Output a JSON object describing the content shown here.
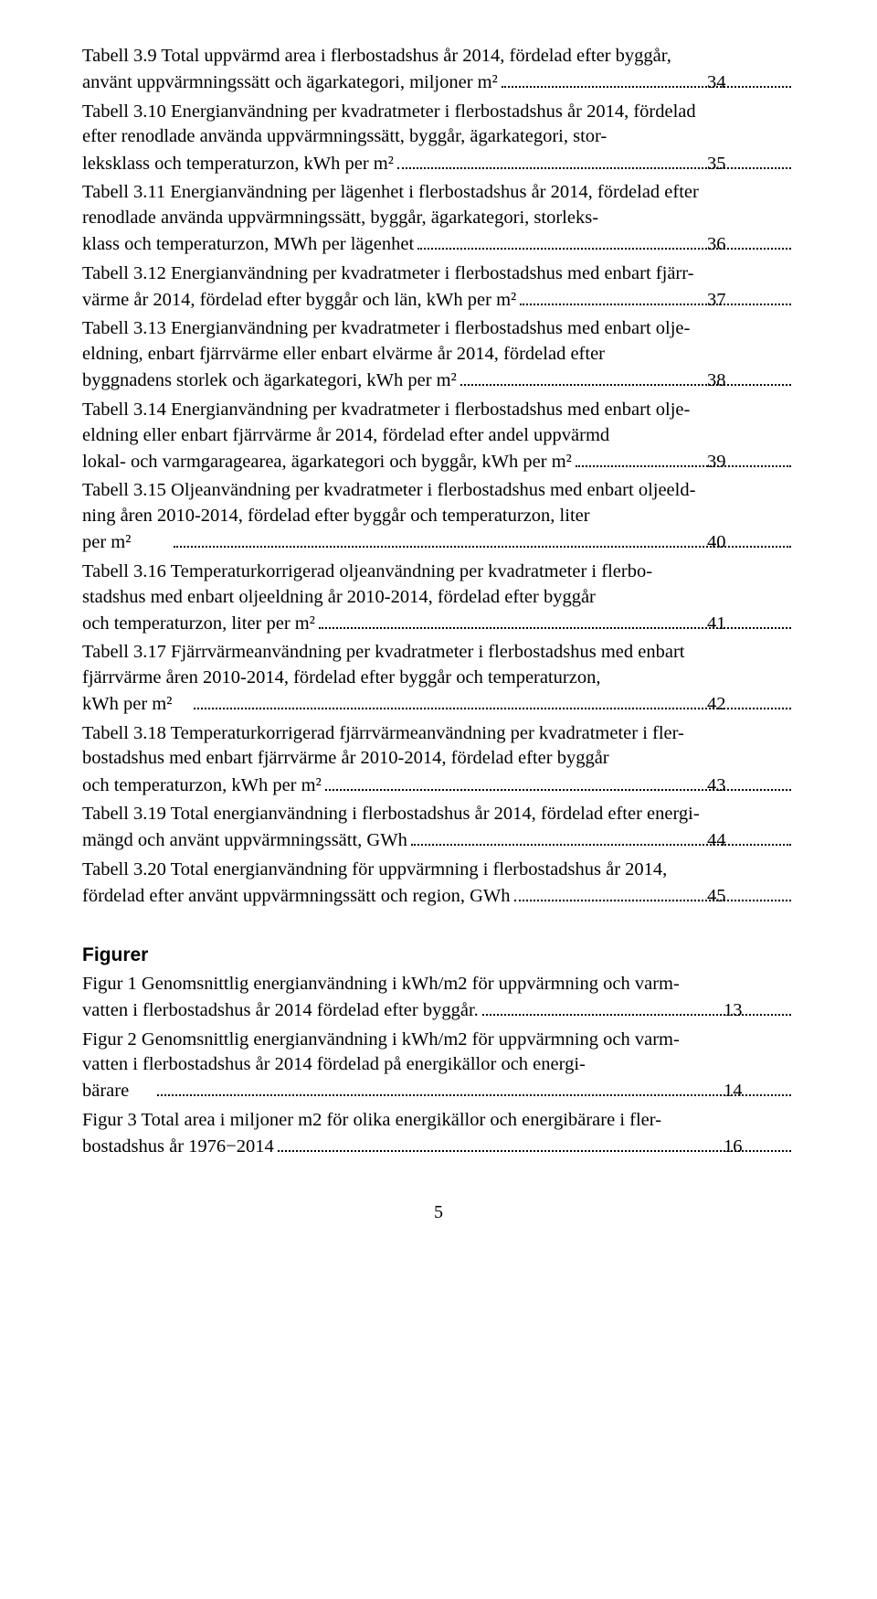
{
  "tables": [
    {
      "label": "Tabell 3.9 Total uppvärmd area i flerbostadshus år 2014, fördelad efter byggår, använt uppvärmningssätt och ägarkategori, miljoner m²",
      "lines": [
        "Tabell 3.9 Total uppvärmd area i flerbostadshus år 2014, fördelad efter byggår,",
        "använt uppvärmningssätt och ägarkategori, miljoner m²"
      ],
      "page": "34"
    },
    {
      "label": "Tabell 3.10 Energianvändning per kvadratmeter i flerbostadshus år 2014, fördelad efter renodlade använda uppvärmningssätt, byggår, ägarkategori, storleksklass och temperaturzon, kWh per m²",
      "lines": [
        "Tabell 3.10 Energianvändning per kvadratmeter i flerbostadshus år 2014, fördelad",
        "efter renodlade använda uppvärmningssätt, byggår, ägarkategori, stor-",
        "leksklass och temperaturzon, kWh per m²"
      ],
      "page": "35"
    },
    {
      "label": "Tabell 3.11 Energianvändning per lägenhet i flerbostadshus år 2014, fördelad efter renodlade använda uppvärmningssätt, byggår, ägarkategori, storleksklass och temperaturzon, MWh per lägenhet",
      "lines": [
        "Tabell 3.11 Energianvändning per lägenhet i flerbostadshus år 2014, fördelad efter",
        "renodlade använda uppvärmningssätt, byggår, ägarkategori, storleks-",
        "klass och temperaturzon, MWh per lägenhet"
      ],
      "page": "36"
    },
    {
      "label": "Tabell 3.12 Energianvändning per kvadratmeter i flerbostadshus med enbart fjärrvärme år 2014, fördelad efter byggår och län, kWh per m²",
      "lines": [
        "Tabell 3.12 Energianvändning per kvadratmeter i flerbostadshus med enbart fjärr-",
        "värme år 2014, fördelad efter byggår och län, kWh per m²"
      ],
      "page": "37"
    },
    {
      "label": "Tabell 3.13 Energianvändning per kvadratmeter i flerbostadshus med enbart oljeeldning, enbart fjärrvärme eller enbart elvärme år 2014, fördelad efter byggnadens storlek och ägarkategori, kWh per m²",
      "lines": [
        "Tabell 3.13 Energianvändning per kvadratmeter i flerbostadshus med enbart olje-",
        "eldning, enbart fjärrvärme eller enbart elvärme år 2014, fördelad efter",
        "byggnadens storlek och ägarkategori, kWh per m²"
      ],
      "page": "38"
    },
    {
      "label": "Tabell 3.14 Energianvändning per kvadratmeter i flerbostadshus med enbart oljeeldning eller enbart fjärrvärme år 2014, fördelad efter andel uppvärmd lokal- och varmgaragearea, ägarkategori och byggår, kWh per m²",
      "lines": [
        "Tabell 3.14 Energianvändning per kvadratmeter i flerbostadshus med enbart olje-",
        "eldning eller enbart fjärrvärme år 2014, fördelad efter andel uppvärmd",
        "lokal- och varmgaragearea, ägarkategori och byggår, kWh per m²"
      ],
      "page": "39"
    },
    {
      "label": "Tabell 3.15 Oljeanvändning per kvadratmeter i flerbostadshus med enbart oljeeldning åren 2010-2014, fördelad efter byggår och temperaturzon, liter per m²",
      "lines": [
        "Tabell 3.15 Oljeanvändning per kvadratmeter i flerbostadshus med enbart oljeeld-",
        "ning åren 2010-2014, fördelad efter byggår och temperaturzon, liter",
        "per m²"
      ],
      "page": "40"
    },
    {
      "label": "Tabell 3.16 Temperaturkorrigerad oljeanvändning per kvadratmeter i flerbostadshus med enbart oljeeldning år 2010-2014, fördelad efter byggår och temperaturzon, liter per m²",
      "lines": [
        "Tabell 3.16 Temperaturkorrigerad oljeanvändning per kvadratmeter i flerbo-",
        "stadshus med enbart oljeeldning år 2010-2014, fördelad efter byggår",
        "och temperaturzon, liter per m²"
      ],
      "page": "41"
    },
    {
      "label": "Tabell 3.17 Fjärrvärmeanvändning per kvadratmeter i flerbostadshus med enbart fjärrvärme åren 2010-2014, fördelad efter byggår och temperaturzon, kWh per m²",
      "lines": [
        "Tabell 3.17 Fjärrvärmeanvändning per kvadratmeter i flerbostadshus med enbart",
        "fjärrvärme åren 2010-2014, fördelad efter byggår och temperaturzon,",
        "kWh per m²"
      ],
      "page": "42"
    },
    {
      "label": "Tabell 3.18 Temperaturkorrigerad fjärrvärmeanvändning per kvadratmeter i flerbostadshus med enbart fjärrvärme år 2010-2014, fördelad efter byggår och temperaturzon, kWh per m²",
      "lines": [
        "Tabell 3.18 Temperaturkorrigerad fjärrvärmeanvändning per kvadratmeter i fler-",
        "bostadshus med enbart fjärrvärme år 2010-2014, fördelad efter byggår",
        "och temperaturzon, kWh per m²"
      ],
      "page": "43"
    },
    {
      "label": "Tabell 3.19 Total energianvändning i flerbostadshus år 2014, fördelad efter energimängd och använt uppvärmningssätt, GWh",
      "lines": [
        "Tabell 3.19 Total energianvändning i flerbostadshus år 2014, fördelad efter energi-",
        "mängd och använt uppvärmningssätt, GWh"
      ],
      "page": "44"
    },
    {
      "label": "Tabell 3.20 Total energianvändning för uppvärmning i flerbostadshus år 2014, fördelad efter använt uppvärmningssätt och region, GWh",
      "lines": [
        "Tabell 3.20 Total energianvändning för uppvärmning i flerbostadshus år 2014,",
        "fördelad efter använt uppvärmningssätt och region, GWh"
      ],
      "page": "45"
    }
  ],
  "figures_heading": "Figurer",
  "figures": [
    {
      "label": "Figur 1 Genomsnittlig energianvändning i kWh/m2 för uppvärmning och varmvatten i flerbostadshus år 2014 fördelad efter byggår.",
      "lines": [
        "Figur 1 Genomsnittlig energianvändning i kWh/m2 för uppvärmning och varm-",
        "vatten i flerbostadshus år 2014 fördelad efter byggår."
      ],
      "page": "13"
    },
    {
      "label": "Figur 2 Genomsnittlig energianvändning i kWh/m2 för uppvärmning och varmvatten i flerbostadshus år 2014 fördelad på energikällor och energibärare",
      "lines": [
        "Figur 2 Genomsnittlig energianvändning i kWh/m2 för uppvärmning och varm-",
        "vatten i flerbostadshus år 2014 fördelad på energikällor och energi-",
        "bärare"
      ],
      "page": "14"
    },
    {
      "label": "Figur 3 Total area i miljoner m2 för olika energikällor och energibärare i flerbostadshus år 1976−2014",
      "lines": [
        "Figur 3 Total area i miljoner m2 för olika energikällor och energibärare i fler-",
        "bostadshus år 1976−2014"
      ],
      "page": "16"
    }
  ],
  "footer_page_number": "5"
}
